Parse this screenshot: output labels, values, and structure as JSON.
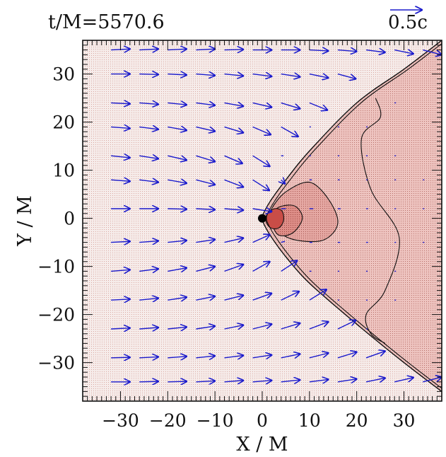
{
  "chart_data": {
    "type": "contour",
    "title": "t/M=5570.6",
    "legend": {
      "scale_label": "0.5c",
      "position": "top-right",
      "arrow_length_data_units": 4.3
    },
    "xlabel": "X / M",
    "ylabel": "Y / M",
    "xlim": [
      -38,
      38
    ],
    "ylim": [
      -38,
      37
    ],
    "xticks": [
      -30,
      -20,
      -10,
      0,
      10,
      20,
      30
    ],
    "yticks": [
      -30,
      -20,
      -10,
      0,
      10,
      20,
      30
    ],
    "xtick_labels": [
      "−30",
      "−20",
      "−10",
      "0",
      "10",
      "20",
      "30"
    ],
    "ytick_labels": [
      "−30",
      "−20",
      "−10",
      "0",
      "10",
      "20",
      "30"
    ],
    "black_hole": {
      "x": 0,
      "y": 0,
      "color": "#000000"
    },
    "colors": {
      "background": "#f6ecea",
      "shock_region": "#eec4c0",
      "level_2": "#e5a8a3",
      "level_3": "#de8e88",
      "core": "#c94d47",
      "arrows": "#1a1acc",
      "contour_line": "#111111"
    },
    "shock_front": [
      [
        38,
        37
      ],
      [
        30,
        31
      ],
      [
        20,
        24
      ],
      [
        10,
        14
      ],
      [
        5,
        8
      ],
      [
        2,
        4
      ],
      [
        0.5,
        1.5
      ],
      [
        0,
        0
      ],
      [
        0.5,
        -1.5
      ],
      [
        2,
        -4
      ],
      [
        5,
        -8
      ],
      [
        10,
        -13.5
      ],
      [
        20,
        -22
      ],
      [
        30,
        -30
      ],
      [
        38,
        -36
      ]
    ],
    "contours": [
      {
        "level": 2,
        "points": [
          [
            2,
            2
          ],
          [
            5,
            5.5
          ],
          [
            10,
            7.5
          ],
          [
            14,
            4
          ],
          [
            16,
            -1
          ],
          [
            13,
            -4.5
          ],
          [
            7,
            -4.5
          ],
          [
            3,
            -2.5
          ],
          [
            2,
            0
          ]
        ]
      },
      {
        "level": 3,
        "points": [
          [
            2,
            1
          ],
          [
            4,
            2.5
          ],
          [
            7,
            2.5
          ],
          [
            8.5,
            0
          ],
          [
            6.5,
            -3
          ],
          [
            3.5,
            -3.5
          ],
          [
            2,
            -1
          ]
        ]
      },
      {
        "level": 4,
        "points": [
          [
            1,
            0.8
          ],
          [
            2.6,
            2
          ],
          [
            4.2,
            1.5
          ],
          [
            4.5,
            -0.5
          ],
          [
            3.5,
            -2
          ],
          [
            1.8,
            -2
          ],
          [
            0.8,
            -0.7
          ]
        ]
      },
      {
        "level": 1,
        "points": [
          [
            24,
            25
          ],
          [
            25,
            21
          ],
          [
            21,
            16.5
          ],
          [
            23,
            6
          ],
          [
            29,
            -4
          ],
          [
            26,
            -15
          ],
          [
            22,
            -20
          ],
          [
            23,
            -24
          ],
          [
            26,
            -26
          ]
        ]
      }
    ],
    "vectors": [
      {
        "x": -32,
        "y": 35,
        "u": 4,
        "v": 0.2
      },
      {
        "x": -26,
        "y": 35,
        "u": 4,
        "v": 0.2
      },
      {
        "x": -20,
        "y": 35,
        "u": 4,
        "v": 0.2
      },
      {
        "x": -14,
        "y": 35,
        "u": 4,
        "v": 0.2
      },
      {
        "x": -8,
        "y": 35,
        "u": 4,
        "v": 0.1
      },
      {
        "x": -2,
        "y": 35,
        "u": 4,
        "v": 0
      },
      {
        "x": 4,
        "y": 35,
        "u": 4,
        "v": 0
      },
      {
        "x": 10,
        "y": 35,
        "u": 4,
        "v": -0.2
      },
      {
        "x": 16,
        "y": 35,
        "u": 4,
        "v": -0.3
      },
      {
        "x": 22,
        "y": 35,
        "u": 4,
        "v": -0.5
      },
      {
        "x": 28,
        "y": 35,
        "u": 4,
        "v": -0.8
      },
      {
        "x": 34,
        "y": 35,
        "u": 4,
        "v": -1
      },
      {
        "x": -32,
        "y": 30,
        "u": 4,
        "v": 0
      },
      {
        "x": -26,
        "y": 30,
        "u": 4,
        "v": -0.1
      },
      {
        "x": -20,
        "y": 30,
        "u": 4,
        "v": -0.2
      },
      {
        "x": -14,
        "y": 30,
        "u": 4,
        "v": -0.3
      },
      {
        "x": -8,
        "y": 30,
        "u": 4,
        "v": -0.4
      },
      {
        "x": -2,
        "y": 30,
        "u": 4,
        "v": -0.5
      },
      {
        "x": 4,
        "y": 30,
        "u": 4,
        "v": -0.6
      },
      {
        "x": 10,
        "y": 30,
        "u": 4,
        "v": -0.8
      },
      {
        "x": 16,
        "y": 30,
        "u": 3.8,
        "v": -1
      },
      {
        "x": -32,
        "y": 24,
        "u": 4,
        "v": -0.2
      },
      {
        "x": -26,
        "y": 24,
        "u": 4,
        "v": -0.3
      },
      {
        "x": -20,
        "y": 24,
        "u": 4,
        "v": -0.4
      },
      {
        "x": -14,
        "y": 24,
        "u": 4,
        "v": -0.5
      },
      {
        "x": -8,
        "y": 24,
        "u": 4,
        "v": -0.7
      },
      {
        "x": -2,
        "y": 24,
        "u": 4,
        "v": -0.9
      },
      {
        "x": 4,
        "y": 24,
        "u": 4,
        "v": -1.2
      },
      {
        "x": 10,
        "y": 24,
        "u": 3.8,
        "v": -1.5
      },
      {
        "x": 28,
        "y": 24,
        "u": 0.3,
        "v": 0
      },
      {
        "x": -32,
        "y": 19,
        "u": 4,
        "v": -0.3
      },
      {
        "x": -26,
        "y": 19,
        "u": 4,
        "v": -0.5
      },
      {
        "x": -20,
        "y": 19,
        "u": 4,
        "v": -0.7
      },
      {
        "x": -14,
        "y": 19,
        "u": 4,
        "v": -0.9
      },
      {
        "x": -8,
        "y": 19,
        "u": 4,
        "v": -1.2
      },
      {
        "x": -2,
        "y": 19,
        "u": 3.8,
        "v": -1.6
      },
      {
        "x": 4,
        "y": 19,
        "u": 3.6,
        "v": -2
      },
      {
        "x": 10,
        "y": 19,
        "u": 0.3,
        "v": 0
      },
      {
        "x": 16,
        "y": 19,
        "u": 0.3,
        "v": 0
      },
      {
        "x": 22,
        "y": 19,
        "u": 0.3,
        "v": 0
      },
      {
        "x": -32,
        "y": 13,
        "u": 4,
        "v": -0.4
      },
      {
        "x": -26,
        "y": 13,
        "u": 4,
        "v": -0.6
      },
      {
        "x": -20,
        "y": 13,
        "u": 4,
        "v": -0.9
      },
      {
        "x": -14,
        "y": 13,
        "u": 4,
        "v": -1.2
      },
      {
        "x": -8,
        "y": 13,
        "u": 3.8,
        "v": -1.6
      },
      {
        "x": -2,
        "y": 13,
        "u": 3.6,
        "v": -2.2
      },
      {
        "x": 4,
        "y": 13,
        "u": 0.5,
        "v": 0
      },
      {
        "x": 10,
        "y": 13,
        "u": 0.3,
        "v": 0
      },
      {
        "x": 16,
        "y": 13,
        "u": 0.3,
        "v": 0
      },
      {
        "x": 22,
        "y": 13,
        "u": 0.3,
        "v": 0
      },
      {
        "x": 28,
        "y": 13,
        "u": 0.3,
        "v": 0
      },
      {
        "x": -32,
        "y": 8,
        "u": 4,
        "v": -0.3
      },
      {
        "x": -26,
        "y": 8,
        "u": 4,
        "v": -0.5
      },
      {
        "x": -20,
        "y": 8,
        "u": 4,
        "v": -0.7
      },
      {
        "x": -14,
        "y": 8,
        "u": 4,
        "v": -1
      },
      {
        "x": -8,
        "y": 8,
        "u": 4,
        "v": -1.5
      },
      {
        "x": -2,
        "y": 8,
        "u": 3.5,
        "v": -2.2
      },
      {
        "x": 4,
        "y": 8,
        "u": 0.8,
        "v": -0.8
      },
      {
        "x": 10,
        "y": 8,
        "u": 0.5,
        "v": 0
      },
      {
        "x": 16,
        "y": 8,
        "u": 0.4,
        "v": 0
      },
      {
        "x": 22,
        "y": 8,
        "u": 0.3,
        "v": 0
      },
      {
        "x": 28,
        "y": 8,
        "u": 0.3,
        "v": 0
      },
      {
        "x": 34,
        "y": 8,
        "u": 0.3,
        "v": 0
      },
      {
        "x": -32,
        "y": 2,
        "u": 4,
        "v": 0
      },
      {
        "x": -26,
        "y": 2,
        "u": 4,
        "v": 0
      },
      {
        "x": -20,
        "y": 2,
        "u": 4,
        "v": -0.1
      },
      {
        "x": -14,
        "y": 2,
        "u": 4,
        "v": -0.2
      },
      {
        "x": -8,
        "y": 2,
        "u": 4,
        "v": -0.3
      },
      {
        "x": -2,
        "y": 2,
        "u": 4,
        "v": -0.6
      },
      {
        "x": 4,
        "y": 2,
        "u": 1,
        "v": 0
      },
      {
        "x": 10,
        "y": 2,
        "u": 0.8,
        "v": 0
      },
      {
        "x": 16,
        "y": 2,
        "u": 0.6,
        "v": 0
      },
      {
        "x": 22,
        "y": 2,
        "u": 0.4,
        "v": 0
      },
      {
        "x": 28,
        "y": 2,
        "u": 0.3,
        "v": 0
      },
      {
        "x": 34,
        "y": 2,
        "u": 0.3,
        "v": 0
      },
      {
        "x": -32,
        "y": -5,
        "u": 4,
        "v": 0.2
      },
      {
        "x": -26,
        "y": -5,
        "u": 4,
        "v": 0.3
      },
      {
        "x": -20,
        "y": -5,
        "u": 4,
        "v": 0.4
      },
      {
        "x": -14,
        "y": -5,
        "u": 4,
        "v": 0.6
      },
      {
        "x": -8,
        "y": -5,
        "u": 4,
        "v": 0.9
      },
      {
        "x": -2,
        "y": -5,
        "u": 3.6,
        "v": 1.6
      },
      {
        "x": 4,
        "y": -5,
        "u": 0.8,
        "v": 0.2
      },
      {
        "x": 10,
        "y": -5,
        "u": 0.6,
        "v": 0
      },
      {
        "x": 16,
        "y": -5,
        "u": 0.5,
        "v": 0
      },
      {
        "x": 22,
        "y": -5,
        "u": 0.4,
        "v": 0
      },
      {
        "x": 28,
        "y": -5,
        "u": 0.3,
        "v": 0
      },
      {
        "x": 34,
        "y": -5,
        "u": 0.3,
        "v": 0
      },
      {
        "x": -32,
        "y": -11,
        "u": 4,
        "v": 0.3
      },
      {
        "x": -26,
        "y": -11,
        "u": 4,
        "v": 0.5
      },
      {
        "x": -20,
        "y": -11,
        "u": 4,
        "v": 0.7
      },
      {
        "x": -14,
        "y": -11,
        "u": 4,
        "v": 1
      },
      {
        "x": -8,
        "y": -11,
        "u": 4,
        "v": 1.4
      },
      {
        "x": -2,
        "y": -11,
        "u": 3.6,
        "v": 2
      },
      {
        "x": 4,
        "y": -11,
        "u": 3.4,
        "v": 2.2
      },
      {
        "x": 10,
        "y": -11,
        "u": 0.4,
        "v": 0
      },
      {
        "x": 16,
        "y": -11,
        "u": 0.3,
        "v": 0
      },
      {
        "x": 22,
        "y": -11,
        "u": 0.3,
        "v": 0
      },
      {
        "x": 28,
        "y": -11,
        "u": 0.3,
        "v": 0
      },
      {
        "x": -32,
        "y": -17,
        "u": 4,
        "v": 0.2
      },
      {
        "x": -26,
        "y": -17,
        "u": 4,
        "v": 0.4
      },
      {
        "x": -20,
        "y": -17,
        "u": 4,
        "v": 0.6
      },
      {
        "x": -14,
        "y": -17,
        "u": 4,
        "v": 0.8
      },
      {
        "x": -8,
        "y": -17,
        "u": 4,
        "v": 1
      },
      {
        "x": -2,
        "y": -17,
        "u": 4,
        "v": 1.4
      },
      {
        "x": 4,
        "y": -17,
        "u": 3.8,
        "v": 1.8
      },
      {
        "x": 10,
        "y": -17,
        "u": 3.6,
        "v": 2.2
      },
      {
        "x": 16,
        "y": -17,
        "u": 0.3,
        "v": 0
      },
      {
        "x": 22,
        "y": -17,
        "u": 0.3,
        "v": 0
      },
      {
        "x": 28,
        "y": -17,
        "u": 0.3,
        "v": 0
      },
      {
        "x": -32,
        "y": -23,
        "u": 4,
        "v": 0.2
      },
      {
        "x": -26,
        "y": -23,
        "u": 4,
        "v": 0.3
      },
      {
        "x": -20,
        "y": -23,
        "u": 4,
        "v": 0.4
      },
      {
        "x": -14,
        "y": -23,
        "u": 4,
        "v": 0.6
      },
      {
        "x": -8,
        "y": -23,
        "u": 4,
        "v": 0.8
      },
      {
        "x": -2,
        "y": -23,
        "u": 4,
        "v": 1
      },
      {
        "x": 4,
        "y": -23,
        "u": 4,
        "v": 1.2
      },
      {
        "x": 10,
        "y": -23,
        "u": 4,
        "v": 1.5
      },
      {
        "x": 16,
        "y": -23,
        "u": 3.8,
        "v": 1.8
      },
      {
        "x": 22,
        "y": -23,
        "u": 0.3,
        "v": 0
      },
      {
        "x": -32,
        "y": -29,
        "u": 4,
        "v": 0.1
      },
      {
        "x": -26,
        "y": -29,
        "u": 4,
        "v": 0.2
      },
      {
        "x": -20,
        "y": -29,
        "u": 4,
        "v": 0.3
      },
      {
        "x": -14,
        "y": -29,
        "u": 4,
        "v": 0.4
      },
      {
        "x": -8,
        "y": -29,
        "u": 4,
        "v": 0.5
      },
      {
        "x": -2,
        "y": -29,
        "u": 4,
        "v": 0.6
      },
      {
        "x": 4,
        "y": -29,
        "u": 4,
        "v": 0.8
      },
      {
        "x": 10,
        "y": -29,
        "u": 4,
        "v": 1
      },
      {
        "x": 16,
        "y": -29,
        "u": 4,
        "v": 1.2
      },
      {
        "x": 22,
        "y": -29,
        "u": 4,
        "v": 1.4
      },
      {
        "x": -32,
        "y": -34,
        "u": 4,
        "v": 0
      },
      {
        "x": -26,
        "y": -34,
        "u": 4,
        "v": 0.1
      },
      {
        "x": -20,
        "y": -34,
        "u": 4,
        "v": 0.1
      },
      {
        "x": -14,
        "y": -34,
        "u": 4,
        "v": 0.2
      },
      {
        "x": -8,
        "y": -34,
        "u": 4,
        "v": 0.3
      },
      {
        "x": -2,
        "y": -34,
        "u": 4,
        "v": 0.3
      },
      {
        "x": 4,
        "y": -34,
        "u": 4,
        "v": 0.4
      },
      {
        "x": 10,
        "y": -34,
        "u": 4,
        "v": 0.5
      },
      {
        "x": 16,
        "y": -34,
        "u": 4,
        "v": 0.6
      },
      {
        "x": 22,
        "y": -34,
        "u": 4,
        "v": 0.8
      },
      {
        "x": 28,
        "y": -34,
        "u": 4,
        "v": 0.9
      },
      {
        "x": 34,
        "y": -34,
        "u": 4,
        "v": 1
      }
    ]
  }
}
